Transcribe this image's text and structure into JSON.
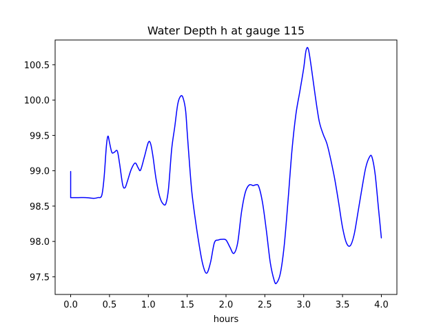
{
  "chart_data": {
    "type": "line",
    "title": "Water Depth h at gauge 115",
    "xlabel": "hours",
    "ylabel": "",
    "xlim": [
      -0.2,
      4.2
    ],
    "ylim": [
      97.25,
      100.85
    ],
    "x_ticks": [
      0.0,
      0.5,
      1.0,
      1.5,
      2.0,
      2.5,
      3.0,
      3.5,
      4.0
    ],
    "x_tick_labels": [
      "0.0",
      "0.5",
      "1.0",
      "1.5",
      "2.0",
      "2.5",
      "3.0",
      "3.5",
      "4.0"
    ],
    "y_ticks": [
      97.5,
      98.0,
      98.5,
      99.0,
      99.5,
      100.0,
      100.5
    ],
    "y_tick_labels": [
      "97.5",
      "98.0",
      "98.5",
      "99.0",
      "99.5",
      "100.0",
      "100.5"
    ],
    "grid": false,
    "legend": "none",
    "series": [
      {
        "color": "#0000ff",
        "x": [
          0.0,
          0.0,
          0.1,
          0.2,
          0.3,
          0.35,
          0.4,
          0.43,
          0.46,
          0.48,
          0.5,
          0.53,
          0.56,
          0.6,
          0.63,
          0.67,
          0.7,
          0.73,
          0.78,
          0.83,
          0.87,
          0.9,
          0.95,
          1.0,
          1.03,
          1.06,
          1.1,
          1.15,
          1.2,
          1.23,
          1.26,
          1.3,
          1.34,
          1.38,
          1.42,
          1.45,
          1.48,
          1.5,
          1.53,
          1.56,
          1.6,
          1.65,
          1.7,
          1.75,
          1.8,
          1.85,
          1.9,
          1.95,
          2.0,
          2.05,
          2.1,
          2.15,
          2.2,
          2.25,
          2.3,
          2.35,
          2.38,
          2.42,
          2.47,
          2.52,
          2.57,
          2.62,
          2.65,
          2.7,
          2.75,
          2.8,
          2.85,
          2.9,
          2.95,
          3.0,
          3.03,
          3.06,
          3.1,
          3.15,
          3.2,
          3.25,
          3.3,
          3.35,
          3.4,
          3.45,
          3.5,
          3.55,
          3.6,
          3.65,
          3.7,
          3.75,
          3.8,
          3.85,
          3.88,
          3.92,
          3.96,
          4.0
        ],
        "y": [
          98.99,
          98.62,
          98.62,
          98.62,
          98.61,
          98.62,
          98.65,
          98.9,
          99.35,
          99.49,
          99.4,
          99.26,
          99.26,
          99.28,
          99.1,
          98.8,
          98.76,
          98.85,
          99.02,
          99.11,
          99.04,
          99.01,
          99.2,
          99.4,
          99.38,
          99.2,
          98.88,
          98.62,
          98.52,
          98.55,
          98.75,
          99.3,
          99.62,
          99.95,
          100.06,
          100.02,
          99.85,
          99.55,
          99.1,
          98.7,
          98.35,
          97.98,
          97.68,
          97.55,
          97.7,
          97.98,
          98.02,
          98.03,
          98.02,
          97.92,
          97.83,
          97.98,
          98.42,
          98.7,
          98.8,
          98.79,
          98.8,
          98.78,
          98.55,
          98.15,
          97.7,
          97.45,
          97.41,
          97.55,
          97.95,
          98.6,
          99.3,
          99.8,
          100.12,
          100.45,
          100.7,
          100.72,
          100.45,
          100.05,
          99.7,
          99.52,
          99.38,
          99.15,
          98.88,
          98.55,
          98.2,
          97.98,
          97.94,
          98.1,
          98.42,
          98.75,
          99.05,
          99.2,
          99.19,
          98.95,
          98.5,
          98.05
        ]
      }
    ]
  }
}
